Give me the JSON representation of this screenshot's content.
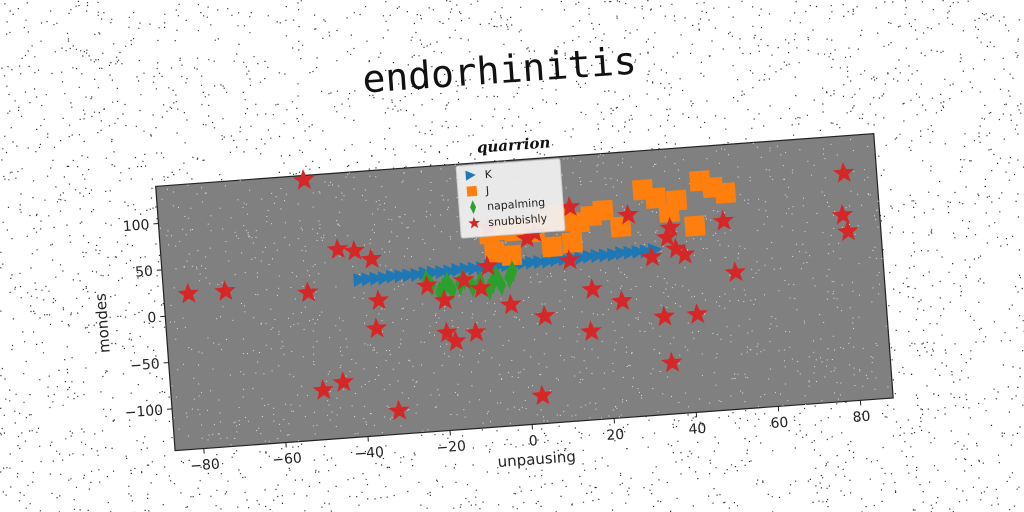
{
  "figure_title": "endorhinitis",
  "colors": {
    "K": "#1f77b4",
    "J": "#ff7f0e",
    "napalming": "#2ca02c",
    "snubbishly": "#d62728",
    "plot_bg": "#808080"
  },
  "chart_data": {
    "type": "scatter",
    "title": "quarrion",
    "xlabel": "unpausing",
    "ylabel": "mondes",
    "xlim": [
      -87,
      88
    ],
    "ylim": [
      -145,
      140
    ],
    "xticks": [
      -80,
      -60,
      -40,
      -20,
      0,
      20,
      40,
      60,
      80
    ],
    "yticks": [
      -100,
      -50,
      0,
      50,
      100
    ],
    "grid": false,
    "legend_position": "top-center",
    "series": [
      {
        "name": "K",
        "marker": "triangle-right",
        "x": [
          -39,
          -37,
          -35,
          -33,
          -31,
          -29,
          -27,
          -25,
          -23,
          -21,
          -19,
          -17,
          -15,
          -13,
          -11,
          -9,
          -7,
          -5,
          -3,
          -1,
          1,
          3,
          5,
          7,
          9,
          11,
          13,
          15,
          17,
          19,
          21,
          23,
          25,
          27,
          29,
          31,
          33
        ],
        "y": [
          24,
          24,
          24,
          24,
          25,
          25,
          25,
          25,
          26,
          26,
          26,
          26,
          27,
          27,
          27,
          27,
          28,
          28,
          28,
          28,
          29,
          29,
          29,
          29,
          30,
          30,
          30,
          30,
          31,
          31,
          31,
          31,
          32,
          32,
          32,
          32,
          33
        ]
      },
      {
        "name": "J",
        "marker": "square",
        "x": [
          -7,
          -4,
          -1,
          1,
          4,
          7,
          10,
          12,
          15,
          18,
          21,
          25,
          31,
          34,
          37,
          39,
          43,
          45,
          48,
          51,
          -6,
          -2,
          8,
          13
        ],
        "y": [
          63,
          66,
          64,
          67,
          61,
          72,
          78,
          70,
          68,
          74,
          79,
          60,
          98,
          88,
          72,
          84,
          55,
          103,
          95,
          88,
          42,
          38,
          44,
          47
        ]
      },
      {
        "name": "napalming",
        "marker": "thin_diamond",
        "x": [
          -23,
          -22,
          -20,
          -19,
          -18,
          -17,
          -15,
          -14,
          -12,
          -10,
          -8,
          -7,
          -6,
          -5,
          -3,
          -2
        ],
        "y": [
          18,
          12,
          4,
          9,
          14,
          6,
          11,
          16,
          8,
          12,
          3,
          10,
          17,
          7,
          14,
          21
        ]
      },
      {
        "name": "snubbishly",
        "marker": "star",
        "x": [
          -81,
          -72,
          -51,
          -52,
          -45,
          -44,
          -40,
          -36,
          -36,
          -35,
          -32,
          -19,
          -19,
          -17,
          -12,
          -10,
          -7,
          -3,
          2,
          3,
          4,
          5,
          12,
          13,
          16,
          17,
          24,
          27,
          32,
          34,
          35,
          36,
          37,
          38,
          40,
          42,
          50,
          52,
          80,
          79,
          80,
          -50,
          -23,
          -14,
          -8
        ],
        "y": [
          22,
          22,
          135,
          14,
          -85,
          58,
          55,
          45,
          -30,
          0,
          -120,
          -40,
          -5,
          -50,
          -42,
          5,
          70,
          -15,
          55,
          -115,
          60,
          -30,
          28,
          85,
          -50,
          -5,
          -20,
          72,
          25,
          -40,
          -90,
          45,
          55,
          32,
          25,
          -40,
          58,
          2,
          100,
          55,
          37,
          -92,
          12,
          15,
          28
        ]
      }
    ]
  }
}
